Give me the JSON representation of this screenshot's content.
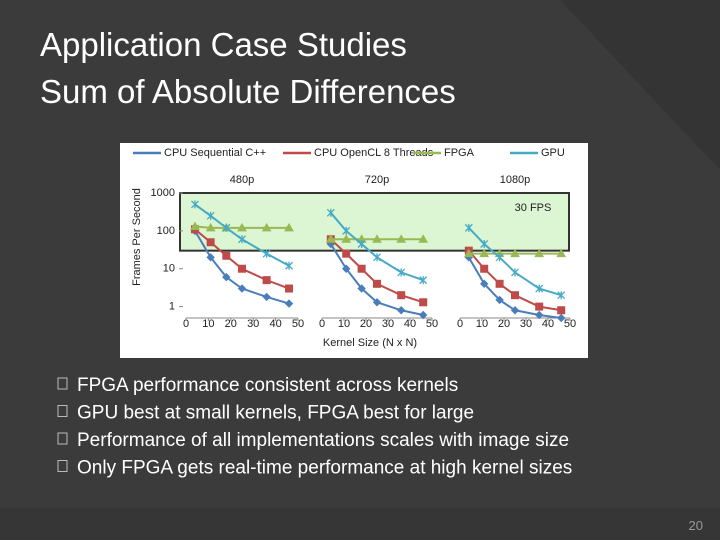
{
  "slide": {
    "title_lines": [
      "Application Case Studies",
      "Sum of Absolute Differences"
    ],
    "bullets": [
      "FPGA performance consistent across kernels",
      "GPU best at small kernels, FPGA best for large",
      "Performance of all implementations scales with image size",
      "Only FPGA gets real-time performance at high kernel sizes"
    ],
    "page_number": "20"
  },
  "chart_data": {
    "type": "line",
    "ylabel": "Frames Per Second",
    "xlabel": "Kernel Size (N x N)",
    "log_y": true,
    "ylim": [
      0.5,
      1000
    ],
    "yticks": [
      1,
      10,
      100,
      1000
    ],
    "xlim": [
      0,
      50
    ],
    "xticks": [
      0,
      10,
      20,
      30,
      40,
      50
    ],
    "x": [
      4,
      11,
      18,
      25,
      36,
      46
    ],
    "band": {
      "label": "30 FPS",
      "range": [
        30,
        1000
      ],
      "color": "#dcf5d2"
    },
    "series": [
      {
        "name": "CPU Sequential C++",
        "color": "#4a7ebb",
        "marker": "diamond"
      },
      {
        "name": "CPU OpenCL 8 Threads",
        "color": "#be4b48",
        "marker": "square"
      },
      {
        "name": "FPGA",
        "color": "#98b954",
        "marker": "triangle"
      },
      {
        "name": "GPU",
        "color": "#46aac5",
        "marker": "x"
      }
    ],
    "panels": [
      {
        "title": "480p",
        "values": [
          [
            100,
            20,
            6,
            3,
            1.8,
            1.2
          ],
          [
            110,
            50,
            22,
            10,
            5,
            3
          ],
          [
            130,
            120,
            120,
            120,
            120,
            120
          ],
          [
            500,
            250,
            120,
            60,
            25,
            12
          ]
        ]
      },
      {
        "title": "720p",
        "values": [
          [
            45,
            10,
            3,
            1.3,
            0.8,
            0.6
          ],
          [
            60,
            25,
            10,
            4,
            2,
            1.3
          ],
          [
            60,
            60,
            60,
            60,
            60,
            60
          ],
          [
            300,
            100,
            45,
            20,
            8,
            5
          ]
        ]
      },
      {
        "title": "1080p",
        "values": [
          [
            20,
            4,
            1.5,
            0.8,
            0.6,
            0.5
          ],
          [
            30,
            10,
            4,
            2,
            1,
            0.8
          ],
          [
            25,
            25,
            25,
            25,
            25,
            25
          ],
          [
            120,
            45,
            20,
            8,
            3,
            2
          ]
        ]
      }
    ]
  }
}
